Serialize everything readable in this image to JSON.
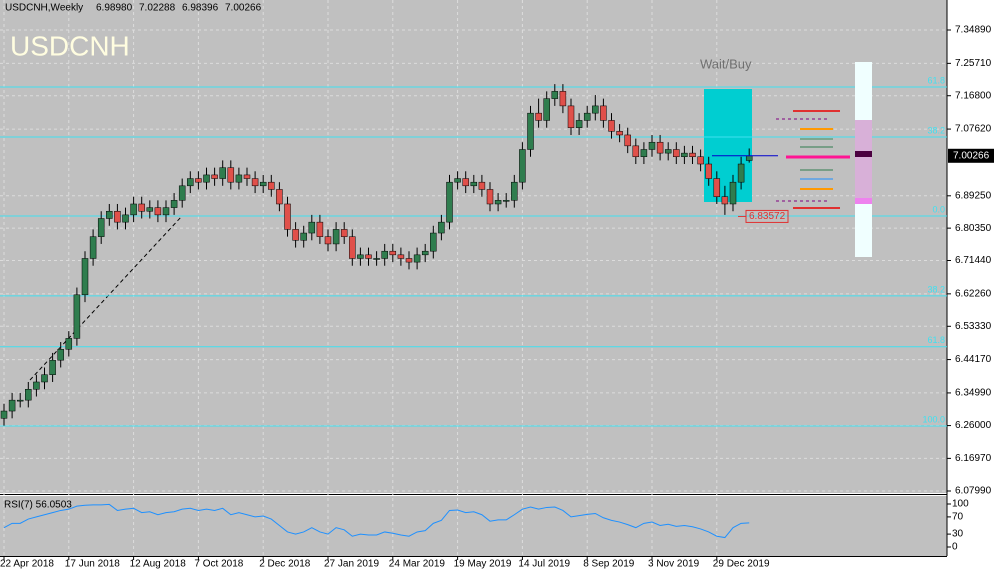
{
  "chart_data": {
    "type": "candlestick",
    "header": {
      "symbol": "USDCNH,Weekly",
      "open": "6.98980",
      "high": "7.02288",
      "low": "6.98396",
      "close": "7.00266"
    },
    "title": "USDCNH",
    "signal": "Wait/Buy",
    "current_price": {
      "value": 7.00266,
      "label": "7.00266"
    },
    "marked_low": {
      "value": 6.83572,
      "label": "6.83572"
    },
    "ylim": [
      6.0744,
      7.4315
    ],
    "yticks": [
      {
        "value": 7.3489,
        "label": "7.34890"
      },
      {
        "value": 7.2571,
        "label": "7.25710"
      },
      {
        "value": 7.168,
        "label": "7.16800"
      },
      {
        "value": 7.0762,
        "label": "7.07620"
      },
      {
        "value": 6.8925,
        "label": "6.89250"
      },
      {
        "value": 6.8035,
        "label": "6.80350"
      },
      {
        "value": 6.7144,
        "label": "6.71440"
      },
      {
        "value": 6.6226,
        "label": "6.62260"
      },
      {
        "value": 6.5333,
        "label": "6.53330"
      },
      {
        "value": 6.4417,
        "label": "6.44170"
      },
      {
        "value": 6.3499,
        "label": "6.34990"
      },
      {
        "value": 6.26,
        "label": "6.26000"
      },
      {
        "value": 6.1697,
        "label": "6.16970"
      },
      {
        "value": 6.0799,
        "label": "6.07990"
      }
    ],
    "fib_levels": [
      {
        "value": 7.192,
        "label": "61.8"
      },
      {
        "value": 7.0544,
        "label": "38.2"
      },
      {
        "value": 6.837,
        "label": "0.0"
      },
      {
        "value": 6.617,
        "label": "38.2"
      },
      {
        "value": 6.477,
        "label": "61.8"
      },
      {
        "value": 6.259,
        "label": "100.0"
      }
    ],
    "xticks": [
      {
        "value": 0,
        "label": "22 Apr 2018"
      },
      {
        "value": 8,
        "label": "17 Jun 2018"
      },
      {
        "value": 16,
        "label": "12 Aug 2018"
      },
      {
        "value": 24,
        "label": "7 Oct 2018"
      },
      {
        "value": 32,
        "label": "2 Dec 2018"
      },
      {
        "value": 40,
        "label": "27 Jan 2019"
      },
      {
        "value": 48,
        "label": "24 Mar 2019"
      },
      {
        "value": 56,
        "label": "19 May 2019"
      },
      {
        "value": 64,
        "label": "14 Jul 2019"
      },
      {
        "value": 72,
        "label": "8 Sep 2019"
      },
      {
        "value": 80,
        "label": "3 Nov 2019"
      },
      {
        "value": 88,
        "label": "29 Dec 2019"
      }
    ],
    "candles": [
      [
        6.28,
        6.32,
        6.26,
        6.3
      ],
      [
        6.3,
        6.35,
        6.28,
        6.33
      ],
      [
        6.33,
        6.35,
        6.31,
        6.33
      ],
      [
        6.33,
        6.38,
        6.31,
        6.36
      ],
      [
        6.36,
        6.4,
        6.34,
        6.38
      ],
      [
        6.38,
        6.42,
        6.36,
        6.4
      ],
      [
        6.4,
        6.46,
        6.38,
        6.44
      ],
      [
        6.44,
        6.49,
        6.42,
        6.47
      ],
      [
        6.47,
        6.52,
        6.45,
        6.5
      ],
      [
        6.5,
        6.64,
        6.48,
        6.62
      ],
      [
        6.62,
        6.74,
        6.6,
        6.72
      ],
      [
        6.72,
        6.8,
        6.7,
        6.78
      ],
      [
        6.78,
        6.85,
        6.76,
        6.83
      ],
      [
        6.83,
        6.87,
        6.81,
        6.85
      ],
      [
        6.85,
        6.87,
        6.8,
        6.82
      ],
      [
        6.82,
        6.86,
        6.8,
        6.84
      ],
      [
        6.84,
        6.89,
        6.82,
        6.87
      ],
      [
        6.87,
        6.89,
        6.83,
        6.85
      ],
      [
        6.85,
        6.88,
        6.83,
        6.86
      ],
      [
        6.86,
        6.88,
        6.82,
        6.84
      ],
      [
        6.84,
        6.88,
        6.82,
        6.86
      ],
      [
        6.86,
        6.9,
        6.84,
        6.88
      ],
      [
        6.88,
        6.94,
        6.86,
        6.92
      ],
      [
        6.92,
        6.96,
        6.9,
        6.94
      ],
      [
        6.94,
        6.96,
        6.91,
        6.93
      ],
      [
        6.93,
        6.97,
        6.91,
        6.95
      ],
      [
        6.95,
        6.97,
        6.92,
        6.94
      ],
      [
        6.94,
        6.99,
        6.92,
        6.97
      ],
      [
        6.97,
        6.99,
        6.91,
        6.93
      ],
      [
        6.93,
        6.97,
        6.91,
        6.95
      ],
      [
        6.95,
        6.97,
        6.92,
        6.94
      ],
      [
        6.94,
        6.96,
        6.9,
        6.92
      ],
      [
        6.92,
        6.95,
        6.9,
        6.93
      ],
      [
        6.93,
        6.95,
        6.89,
        6.91
      ],
      [
        6.91,
        6.93,
        6.85,
        6.87
      ],
      [
        6.87,
        6.89,
        6.78,
        6.8
      ],
      [
        6.8,
        6.82,
        6.75,
        6.77
      ],
      [
        6.77,
        6.81,
        6.75,
        6.79
      ],
      [
        6.79,
        6.84,
        6.77,
        6.82
      ],
      [
        6.82,
        6.84,
        6.76,
        6.78
      ],
      [
        6.78,
        6.8,
        6.74,
        6.76
      ],
      [
        6.76,
        6.82,
        6.74,
        6.8
      ],
      [
        6.8,
        6.82,
        6.76,
        6.78
      ],
      [
        6.78,
        6.8,
        6.7,
        6.72
      ],
      [
        6.72,
        6.75,
        6.7,
        6.73
      ],
      [
        6.73,
        6.75,
        6.7,
        6.72
      ],
      [
        6.72,
        6.74,
        6.7,
        6.72
      ],
      [
        6.72,
        6.76,
        6.7,
        6.74
      ],
      [
        6.74,
        6.76,
        6.71,
        6.73
      ],
      [
        6.73,
        6.75,
        6.7,
        6.72
      ],
      [
        6.72,
        6.74,
        6.69,
        6.71
      ],
      [
        6.71,
        6.75,
        6.69,
        6.73
      ],
      [
        6.73,
        6.76,
        6.71,
        6.74
      ],
      [
        6.74,
        6.81,
        6.72,
        6.79
      ],
      [
        6.79,
        6.84,
        6.77,
        6.82
      ],
      [
        6.82,
        6.95,
        6.8,
        6.93
      ],
      [
        6.93,
        6.96,
        6.91,
        6.94
      ],
      [
        6.94,
        6.96,
        6.9,
        6.92
      ],
      [
        6.92,
        6.95,
        6.9,
        6.93
      ],
      [
        6.93,
        6.95,
        6.89,
        6.91
      ],
      [
        6.91,
        6.93,
        6.85,
        6.87
      ],
      [
        6.87,
        6.9,
        6.85,
        6.88
      ],
      [
        6.88,
        6.9,
        6.86,
        6.88
      ],
      [
        6.88,
        6.95,
        6.86,
        6.93
      ],
      [
        6.93,
        7.04,
        6.91,
        7.02
      ],
      [
        7.02,
        7.14,
        7.0,
        7.12
      ],
      [
        7.12,
        7.16,
        7.08,
        7.1
      ],
      [
        7.1,
        7.18,
        7.08,
        7.16
      ],
      [
        7.16,
        7.2,
        7.14,
        7.18
      ],
      [
        7.18,
        7.2,
        7.12,
        7.14
      ],
      [
        7.14,
        7.16,
        7.06,
        7.08
      ],
      [
        7.08,
        7.12,
        7.06,
        7.1
      ],
      [
        7.1,
        7.14,
        7.08,
        7.12
      ],
      [
        7.12,
        7.17,
        7.1,
        7.14
      ],
      [
        7.14,
        7.16,
        7.08,
        7.1
      ],
      [
        7.1,
        7.12,
        7.05,
        7.07
      ],
      [
        7.07,
        7.09,
        7.04,
        7.06
      ],
      [
        7.06,
        7.08,
        7.01,
        7.03
      ],
      [
        7.03,
        7.05,
        6.98,
        7.0
      ],
      [
        7.0,
        7.04,
        6.98,
        7.02
      ],
      [
        7.02,
        7.06,
        7.0,
        7.04
      ],
      [
        7.04,
        7.06,
        6.99,
        7.01
      ],
      [
        7.01,
        7.04,
        6.99,
        7.02
      ],
      [
        7.02,
        7.04,
        6.98,
        7.0
      ],
      [
        7.0,
        7.03,
        6.98,
        7.01
      ],
      [
        7.01,
        7.03,
        6.98,
        7.0
      ],
      [
        7.0,
        7.02,
        6.96,
        6.98
      ],
      [
        6.98,
        7.0,
        6.92,
        6.94
      ],
      [
        6.94,
        6.96,
        6.87,
        6.89
      ],
      [
        6.89,
        6.92,
        6.84,
        6.87
      ],
      [
        6.87,
        6.95,
        6.85,
        6.93
      ],
      [
        6.93,
        7.0,
        6.91,
        6.98
      ],
      [
        6.9898,
        7.02288,
        6.98396,
        7.00266
      ]
    ],
    "bull_color": "#2f7d4e",
    "bear_color": "#e0504a",
    "grid": true,
    "rsi": {
      "label": "RSI(7) 56.0503",
      "color": "#1e90ff",
      "ylim": [
        0,
        100
      ],
      "yticks": [
        0,
        30,
        70,
        100
      ],
      "values": [
        45,
        55,
        55,
        65,
        70,
        75,
        80,
        85,
        88,
        95,
        97,
        98,
        98,
        99,
        85,
        88,
        90,
        80,
        82,
        75,
        80,
        82,
        88,
        90,
        85,
        88,
        85,
        90,
        75,
        80,
        75,
        70,
        72,
        65,
        50,
        35,
        30,
        35,
        45,
        35,
        30,
        45,
        40,
        25,
        30,
        28,
        28,
        35,
        32,
        28,
        25,
        35,
        38,
        55,
        62,
        85,
        86,
        80,
        82,
        75,
        60,
        63,
        63,
        75,
        88,
        93,
        88,
        92,
        93,
        85,
        70,
        73,
        76,
        78,
        68,
        62,
        58,
        52,
        45,
        55,
        58,
        50,
        53,
        48,
        50,
        47,
        42,
        35,
        25,
        22,
        45,
        55,
        56.0503
      ]
    }
  }
}
